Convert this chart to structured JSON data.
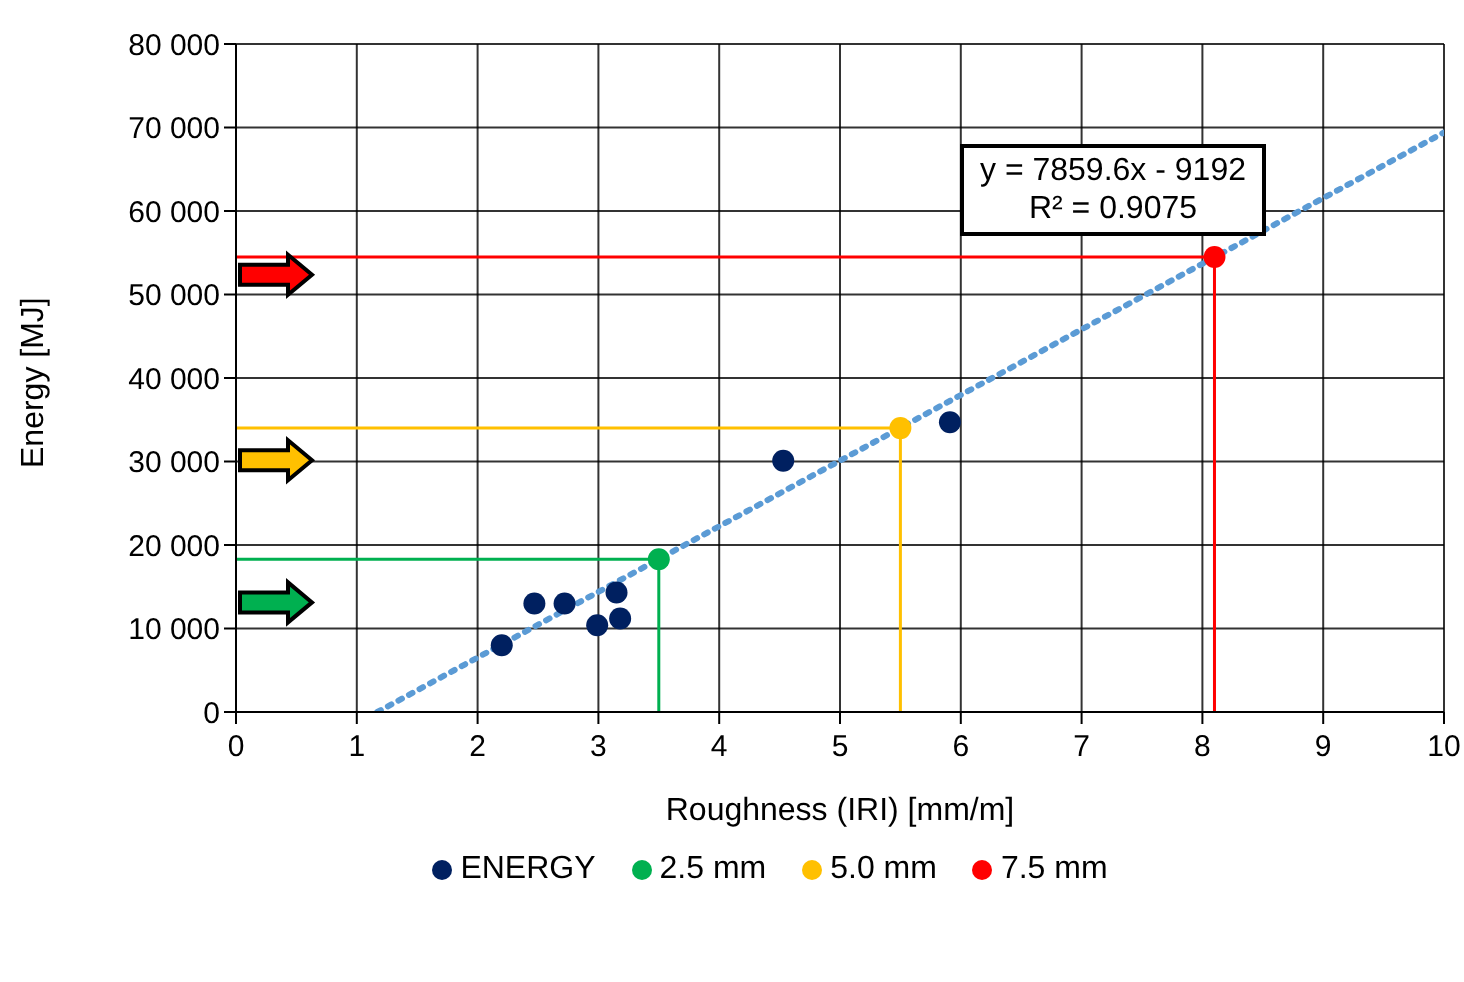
{
  "chart_data": {
    "type": "scatter",
    "xlabel": "Roughness (IRI) [mm/m]",
    "ylabel": "Energy [MJ]",
    "xlim": [
      0,
      10
    ],
    "xticks": [
      0,
      1,
      2,
      3,
      4,
      5,
      6,
      7,
      8,
      9,
      10
    ],
    "ylim": [
      0,
      80000
    ],
    "yticks": [
      {
        "value": 0,
        "label": "0"
      },
      {
        "value": 10000,
        "label": "10 000"
      },
      {
        "value": 20000,
        "label": "20 000"
      },
      {
        "value": 30000,
        "label": "30 000"
      },
      {
        "value": 40000,
        "label": "40 000"
      },
      {
        "value": 50000,
        "label": "50 000"
      },
      {
        "value": 60000,
        "label": "60 000"
      },
      {
        "value": 70000,
        "label": "70 000"
      },
      {
        "value": 80000,
        "label": "80 000"
      }
    ],
    "grid": true,
    "legend": "bottom",
    "marker": "circle",
    "annotations": [
      "y = 7859.6x - 9192",
      "R² = 0.9075"
    ],
    "series": [
      {
        "type": "line",
        "marker": "none",
        "color": "#5b9bd5",
        "line_style": "dotted",
        "x": [
          1.17,
          10
        ],
        "values": [
          0,
          69400
        ]
      },
      {
        "type": "line",
        "marker": "none",
        "color": "#00b050",
        "line_style": "solid",
        "x": [
          0,
          3.5,
          3.5
        ],
        "values": [
          18300,
          18300,
          0
        ]
      },
      {
        "type": "line",
        "marker": "none",
        "color": "#ffc000",
        "line_style": "solid",
        "x": [
          0,
          5.5,
          5.5
        ],
        "values": [
          34000,
          34000,
          0
        ]
      },
      {
        "type": "line",
        "marker": "none",
        "color": "#ff0000",
        "line_style": "solid",
        "x": [
          0,
          8.1,
          8.1
        ],
        "values": [
          54500,
          54500,
          0
        ]
      },
      {
        "name": "ENERGY",
        "color": "#002060",
        "x": [
          2.2,
          2.47,
          2.72,
          2.99,
          3.15,
          3.18,
          4.53,
          5.91
        ],
        "values": [
          8000,
          13000,
          13000,
          10400,
          14300,
          11200,
          30100,
          34700
        ]
      },
      {
        "name": "2.5 mm",
        "color": "#00b050",
        "x": [
          3.5
        ],
        "values": [
          18300
        ]
      },
      {
        "name": "5.0 mm",
        "color": "#ffc000",
        "x": [
          5.5
        ],
        "values": [
          34000
        ]
      },
      {
        "name": "7.5 mm",
        "color": "#ff0000",
        "x": [
          8.1
        ],
        "values": [
          54500
        ]
      }
    ]
  }
}
